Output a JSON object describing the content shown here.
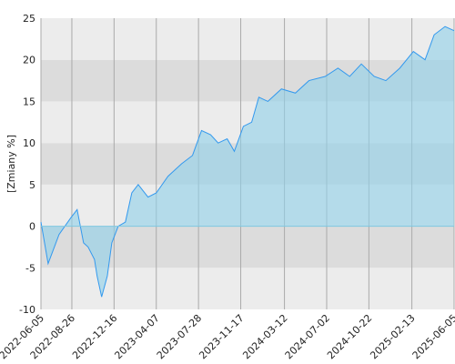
{
  "chart_data": {
    "type": "area",
    "y_label": "[Zmiany %]",
    "x": [
      "2022-06-05",
      "2022-06-24",
      "2022-07-23",
      "2022-08-23",
      "2022-09-09",
      "2022-09-26",
      "2022-10-08",
      "2022-10-25",
      "2022-11-01",
      "2022-11-13",
      "2022-11-28",
      "2022-12-10",
      "2022-12-27",
      "2023-01-15",
      "2023-02-01",
      "2023-02-18",
      "2023-03-16",
      "2023-04-07",
      "2023-05-08",
      "2023-06-13",
      "2023-07-12",
      "2023-08-05",
      "2023-08-29",
      "2023-09-18",
      "2023-10-12",
      "2023-10-31",
      "2023-11-24",
      "2023-12-16",
      "2024-01-04",
      "2024-01-28",
      "2024-03-04",
      "2024-04-10",
      "2024-05-16",
      "2024-06-28",
      "2024-08-01",
      "2024-09-01",
      "2024-10-02",
      "2024-11-05",
      "2024-12-06",
      "2025-01-12",
      "2025-02-17",
      "2025-03-20",
      "2025-04-13",
      "2025-05-12",
      "2025-06-05"
    ],
    "series": [
      {
        "color": "#3399ee",
        "values": [
          0.5,
          -4.5,
          -1,
          1,
          2,
          -2,
          -2.5,
          -4,
          -6,
          -8.5,
          -6,
          -2,
          0,
          0.5,
          4,
          5,
          3.5,
          4,
          6,
          7.5,
          8.5,
          11.5,
          11,
          10,
          10.5,
          9,
          12,
          12.5,
          15.5,
          15,
          16.5,
          16,
          17.5,
          18,
          19,
          18,
          19.5,
          18,
          17.5,
          19,
          21,
          20,
          23,
          24,
          23.5
        ]
      }
    ],
    "xlim": [
      "2022-06-05",
      "2025-06-05"
    ],
    "xticks": [
      "2022-06-05",
      "2022-08-26",
      "2022-12-16",
      "2023-04-07",
      "2023-07-28",
      "2023-11-17",
      "2024-03-12",
      "2024-07-02",
      "2024-10-22",
      "2025-02-13",
      "2025-06-05"
    ],
    "ylim": [
      -10,
      25
    ],
    "yticks": [
      -10,
      -5,
      0,
      5,
      10,
      15,
      20,
      25
    ],
    "grid": true
  }
}
